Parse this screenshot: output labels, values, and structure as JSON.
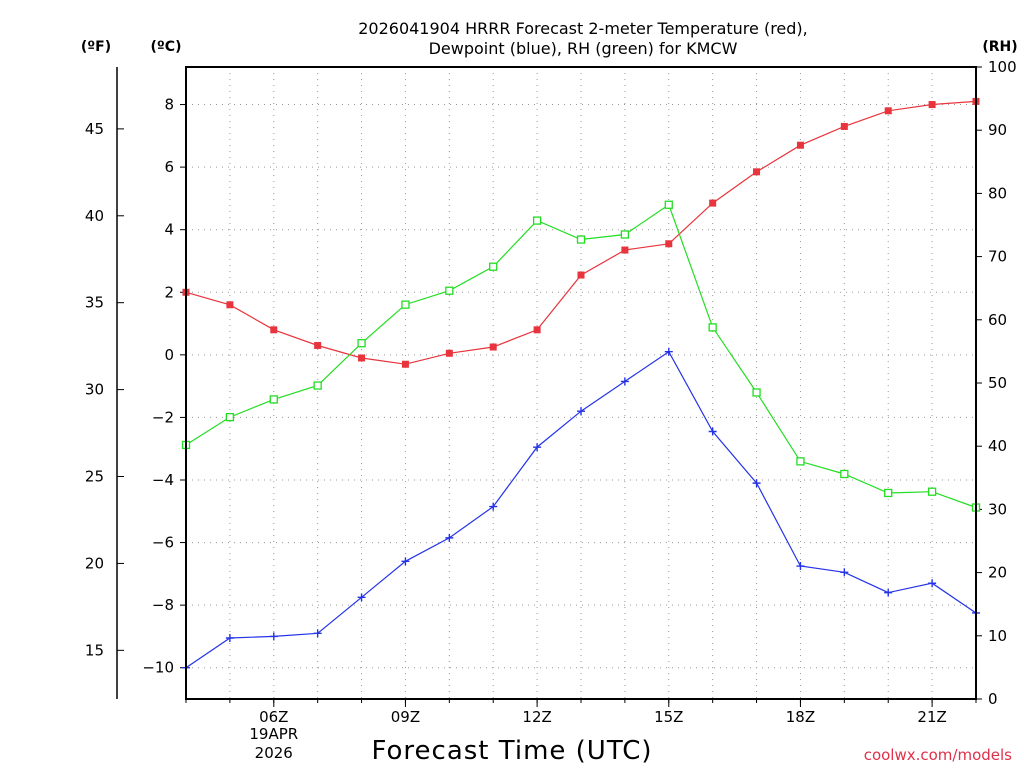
{
  "chart_data": {
    "type": "line",
    "title_line1": "2026041904 HRRR Forecast 2-meter Temperature (red),",
    "title_line2": "Dewpoint (blue), RH (green) for KMCW",
    "xlabel": "Forecast Time (UTC)",
    "credit": "coolwx.com/models",
    "unit_f": "(ºF)",
    "unit_c": "(ºC)",
    "unit_rh": "(RH)",
    "x_hours": [
      4,
      5,
      6,
      7,
      8,
      9,
      10,
      11,
      12,
      13,
      14,
      15,
      16,
      17,
      18,
      19,
      20,
      21,
      22
    ],
    "xlim": [
      4,
      22
    ],
    "x_ticks": [
      {
        "hour": 6,
        "label": "06Z"
      },
      {
        "hour": 9,
        "label": "09Z"
      },
      {
        "hour": 12,
        "label": "12Z"
      },
      {
        "hour": 15,
        "label": "15Z"
      },
      {
        "hour": 18,
        "label": "18Z"
      },
      {
        "hour": 21,
        "label": "21Z"
      }
    ],
    "date_label_hour": 6,
    "date_line1": "19APR",
    "date_line2": "2026",
    "ylim_c": [
      -11,
      9.2
    ],
    "y_ticks_c": [
      -10,
      -8,
      -6,
      -4,
      -2,
      0,
      2,
      4,
      6,
      8
    ],
    "y_ticks_f": [
      15,
      20,
      25,
      30,
      35,
      40,
      45
    ],
    "ylim_rh": [
      0,
      100
    ],
    "y_ticks_rh": [
      0,
      10,
      20,
      30,
      40,
      50,
      60,
      70,
      80,
      90,
      100
    ],
    "series": [
      {
        "name": "Temperature",
        "axis": "c",
        "color": "#e8343c",
        "marker": "filled-square",
        "values": [
          2.0,
          1.6,
          0.8,
          0.3,
          -0.1,
          -0.3,
          0.05,
          0.25,
          0.8,
          2.55,
          3.35,
          3.55,
          4.85,
          5.85,
          6.7,
          7.3,
          7.8,
          8.0,
          8.1
        ]
      },
      {
        "name": "Dewpoint",
        "axis": "c",
        "color": "#2433e8",
        "marker": "plus",
        "values": [
          -10.0,
          -9.05,
          -9.0,
          -8.9,
          -7.75,
          -6.6,
          -5.85,
          -4.85,
          -2.95,
          -1.8,
          -0.85,
          0.1,
          -2.45,
          -4.1,
          -6.75,
          -6.95,
          -7.6,
          -7.3,
          -8.25
        ]
      },
      {
        "name": "RH",
        "axis": "rh",
        "color": "#22dd22",
        "marker": "open-square",
        "values": [
          40.2,
          44.6,
          47.4,
          49.6,
          56.3,
          62.4,
          64.6,
          68.4,
          75.7,
          72.7,
          73.5,
          78.2,
          58.8,
          48.5,
          37.6,
          35.6,
          32.6,
          32.8,
          30.3
        ]
      }
    ]
  }
}
